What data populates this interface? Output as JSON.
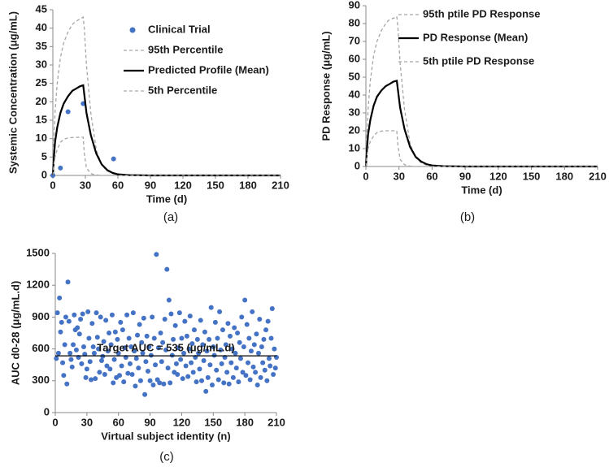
{
  "chart_data": [
    {
      "type": "line",
      "caption": "(a)",
      "xlabel": "Time (d)",
      "ylabel": "Systemic Concentration (μg/mL)",
      "xlim": [
        0,
        210
      ],
      "xticks": [
        0,
        30,
        60,
        90,
        120,
        150,
        180,
        210
      ],
      "ylim": [
        0,
        45
      ],
      "yticks": [
        0,
        5,
        10,
        15,
        20,
        25,
        30,
        35,
        40,
        45
      ],
      "grid": false,
      "series": [
        {
          "name": "Clinical Trial",
          "color": "#4472c4",
          "style": "markers",
          "x": [
            0,
            7,
            14,
            28,
            56
          ],
          "values": [
            0,
            2,
            17.3,
            19.5,
            4.5
          ]
        },
        {
          "name": "95th Percentile",
          "color": "#a6a6a6",
          "style": "dashed",
          "x": [
            0,
            1,
            2,
            4,
            7,
            10,
            14,
            18,
            21,
            25,
            28,
            29,
            31,
            35,
            40,
            45,
            50,
            55,
            60,
            70,
            90,
            120,
            150,
            180,
            210
          ],
          "values": [
            0,
            10,
            17,
            25,
            32,
            36,
            39,
            41,
            41.8,
            42.5,
            43,
            40,
            30,
            17,
            7,
            3,
            1.2,
            0.5,
            0.2,
            0,
            0,
            0,
            0,
            0,
            0
          ]
        },
        {
          "name": "Predicted Profile (Mean)",
          "color": "#000000",
          "style": "solid",
          "x": [
            0,
            1,
            2,
            4,
            7,
            10,
            14,
            18,
            21,
            25,
            28,
            29,
            31,
            35,
            40,
            45,
            50,
            55,
            60,
            70,
            90,
            120,
            150,
            180,
            210
          ],
          "values": [
            0,
            5,
            9,
            13,
            17,
            19.5,
            21.5,
            23,
            23.5,
            24.2,
            24.5,
            22,
            17,
            11,
            6,
            3,
            1.5,
            0.7,
            0.3,
            0.1,
            0,
            0,
            0,
            0,
            0
          ]
        },
        {
          "name": "5th Percentile",
          "color": "#a6a6a6",
          "style": "dashed",
          "x": [
            0,
            1,
            2,
            4,
            7,
            10,
            14,
            18,
            21,
            25,
            28,
            29,
            31,
            35,
            40,
            45,
            50,
            55,
            60,
            70,
            90,
            120,
            150,
            180,
            210
          ],
          "values": [
            0,
            3,
            5,
            7,
            9,
            9.8,
            10.2,
            10.3,
            10.3,
            10.4,
            10.4,
            6,
            2,
            0.5,
            0.1,
            0,
            0,
            0,
            0,
            0,
            0,
            0,
            0,
            0,
            0
          ]
        }
      ]
    },
    {
      "type": "line",
      "caption": "(b)",
      "xlabel": "Time (d)",
      "ylabel": "PD Response (μg/mL)",
      "xlim": [
        0,
        210
      ],
      "xticks": [
        0,
        30,
        60,
        90,
        120,
        150,
        180,
        210
      ],
      "ylim": [
        0,
        90
      ],
      "yticks": [
        0,
        10,
        20,
        30,
        40,
        50,
        60,
        70,
        80,
        90
      ],
      "grid": false,
      "series": [
        {
          "name": "95th ptile PD Response",
          "color": "#a6a6a6",
          "style": "dashed",
          "x": [
            0,
            1,
            2,
            4,
            7,
            10,
            14,
            18,
            21,
            25,
            28,
            29,
            31,
            35,
            40,
            45,
            50,
            55,
            60,
            70,
            90,
            120,
            150,
            180,
            210
          ],
          "values": [
            0,
            18,
            32,
            48,
            62,
            70,
            76,
            80,
            82,
            83,
            84,
            78,
            58,
            32,
            13,
            5,
            2,
            0.8,
            0.3,
            0,
            0,
            0,
            0,
            0,
            0
          ]
        },
        {
          "name": "PD Response (Mean)",
          "color": "#000000",
          "style": "solid",
          "x": [
            0,
            1,
            2,
            4,
            7,
            10,
            14,
            18,
            21,
            25,
            28,
            29,
            31,
            35,
            40,
            45,
            50,
            55,
            60,
            70,
            90,
            120,
            150,
            180,
            210
          ],
          "values": [
            0,
            10,
            18,
            26,
            34,
            39,
            42.5,
            45,
            46,
            47.5,
            48,
            43,
            33,
            21,
            11,
            5.5,
            2.8,
            1.3,
            0.6,
            0.2,
            0,
            0,
            0,
            0,
            0
          ]
        },
        {
          "name": "5th ptile PD Response",
          "color": "#a6a6a6",
          "style": "dashed",
          "x": [
            0,
            1,
            2,
            4,
            7,
            10,
            14,
            18,
            21,
            25,
            28,
            29,
            31,
            35,
            40,
            45,
            50,
            55,
            60,
            70,
            90,
            120,
            150,
            180,
            210
          ],
          "values": [
            0,
            6,
            10,
            14,
            17,
            19,
            19.8,
            20,
            20,
            20,
            20,
            12,
            4,
            1,
            0.2,
            0,
            0,
            0,
            0,
            0,
            0,
            0,
            0,
            0,
            0
          ]
        }
      ]
    },
    {
      "type": "scatter",
      "caption": "(c)",
      "xlabel": "Virtual subject identity (n)",
      "ylabel": "AUC d0-28 (μg/mL.d)",
      "xlim": [
        0,
        210
      ],
      "xticks": [
        0,
        30,
        60,
        90,
        120,
        150,
        180,
        210
      ],
      "ylim": [
        0,
        1500
      ],
      "yticks": [
        0,
        300,
        600,
        900,
        1200,
        1500
      ],
      "grid": false,
      "color": "#4472c4",
      "reference_line": {
        "value": 535,
        "label": "Target AUC = 535 (μg/mL.d)"
      },
      "x": [
        1,
        2,
        3,
        4,
        5,
        6,
        7,
        8,
        9,
        10,
        11,
        12,
        13,
        14,
        15,
        16,
        17,
        18,
        19,
        20,
        21,
        22,
        23,
        24,
        25,
        26,
        27,
        28,
        29,
        30,
        31,
        32,
        33,
        34,
        35,
        36,
        37,
        38,
        39,
        40,
        41,
        42,
        43,
        44,
        45,
        46,
        47,
        48,
        49,
        50,
        51,
        52,
        53,
        54,
        55,
        56,
        57,
        58,
        59,
        60,
        61,
        62,
        63,
        64,
        65,
        66,
        67,
        68,
        69,
        70,
        71,
        72,
        73,
        74,
        75,
        76,
        77,
        78,
        79,
        80,
        81,
        82,
        83,
        84,
        85,
        86,
        87,
        88,
        89,
        90,
        91,
        92,
        93,
        94,
        95,
        96,
        97,
        98,
        99,
        100,
        101,
        102,
        103,
        104,
        105,
        106,
        107,
        108,
        109,
        110,
        111,
        112,
        113,
        114,
        115,
        116,
        117,
        118,
        119,
        120,
        121,
        122,
        123,
        124,
        125,
        126,
        127,
        128,
        129,
        130,
        131,
        132,
        133,
        134,
        135,
        136,
        137,
        138,
        139,
        140,
        141,
        142,
        143,
        144,
        145,
        146,
        147,
        148,
        149,
        150,
        151,
        152,
        153,
        154,
        155,
        156,
        157,
        158,
        159,
        160,
        161,
        162,
        163,
        164,
        165,
        166,
        167,
        168,
        169,
        170,
        171,
        172,
        173,
        174,
        175,
        176,
        177,
        178,
        179,
        180,
        181,
        182,
        183,
        184,
        185,
        186,
        187,
        188,
        189,
        190,
        191,
        192,
        193,
        194,
        195,
        196,
        197,
        198,
        199,
        200,
        201,
        202,
        203,
        204,
        205,
        206,
        207,
        208,
        209,
        210
      ],
      "values": [
        510,
        940,
        560,
        1080,
        760,
        850,
        470,
        350,
        640,
        900,
        270,
        1230,
        860,
        560,
        500,
        430,
        640,
        920,
        780,
        590,
        800,
        520,
        740,
        880,
        460,
        930,
        620,
        550,
        330,
        410,
        950,
        700,
        480,
        310,
        840,
        620,
        560,
        320,
        940,
        710,
        600,
        380,
        900,
        490,
        530,
        670,
        360,
        870,
        440,
        580,
        750,
        410,
        640,
        920,
        280,
        500,
        760,
        330,
        690,
        560,
        350,
        850,
        440,
        780,
        290,
        610,
        520,
        920,
        370,
        700,
        460,
        620,
        360,
        940,
        580,
        250,
        510,
        730,
        420,
        830,
        300,
        660,
        560,
        890,
        170,
        480,
        720,
        390,
        620,
        300,
        540,
        900,
        260,
        700,
        450,
        1490,
        310,
        610,
        280,
        750,
        480,
        660,
        270,
        880,
        590,
        1350,
        420,
        1060,
        280,
        930,
        540,
        690,
        380,
        820,
        460,
        360,
        610,
        940,
        500,
        700,
        320,
        560,
        860,
        440,
        720,
        340,
        600,
        910,
        470,
        650,
        380,
        780,
        520,
        290,
        690,
        560,
        410,
        870,
        300,
        640,
        490,
        760,
        200,
        580,
        330,
        690,
        450,
        990,
        260,
        620,
        540,
        850,
        400,
        700,
        310,
        950,
        590,
        460,
        780,
        280,
        520,
        640,
        380,
        840,
        270,
        720,
        470,
        600,
        330,
        800,
        560,
        420,
        750,
        290,
        660,
        510,
        900,
        380,
        620,
        1060,
        350,
        830,
        470,
        700,
        310,
        580,
        950,
        430,
        640,
        380,
        740,
        260,
        560,
        880,
        330,
        620,
        470,
        690,
        400,
        780,
        300,
        860,
        510,
        440,
        700,
        980,
        360,
        600,
        420,
        520
      ]
    }
  ]
}
